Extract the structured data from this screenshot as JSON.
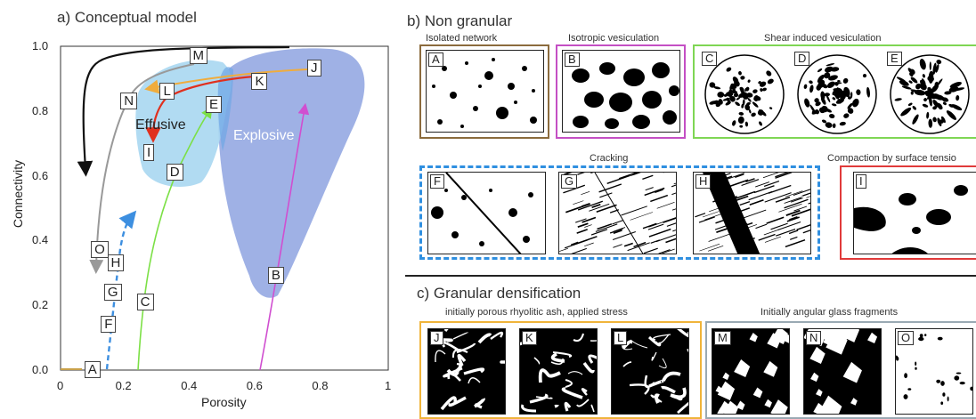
{
  "panel_a": {
    "title": "a) Conceptual model",
    "xlabel": "Porosity",
    "ylabel": "Connectivity",
    "xticks": [
      "0",
      "0.2",
      "0.4",
      "0.6",
      "0.8",
      "1"
    ],
    "yticks": [
      "0.0",
      "0.2",
      "0.4",
      "0.6",
      "0.8",
      "1.0"
    ],
    "region_labels": {
      "effusive": "Effusive",
      "explosive": "Explosive"
    },
    "markers": [
      "A",
      "B",
      "C",
      "D",
      "E",
      "F",
      "G",
      "H",
      "I",
      "J",
      "K",
      "L",
      "M",
      "N",
      "O"
    ]
  },
  "panel_b": {
    "title": "b)  Non granular",
    "groups": {
      "isolated": "Isolated network",
      "isotropic": "Isotropic vesiculation",
      "shear": "Shear induced vesiculation",
      "cracking": "Cracking",
      "compaction": "Compaction by surface tensio"
    },
    "colors": {
      "isolated": "#8b6b3d",
      "isotropic": "#c44fc4",
      "shear": "#7fd654",
      "cracking": "#2f8fe0",
      "compaction": "#e03a3a"
    }
  },
  "panel_c": {
    "title": "c)  Granular densification",
    "groups": {
      "rhyolitic": "initially  porous rhyolitic ash, applied stress",
      "angular": "Initially angular glass fragments"
    },
    "colors": {
      "rhyolitic": "#f0b43a",
      "angular": "#9aa9b3"
    }
  },
  "chart_data": {
    "type": "scatter",
    "title": "a) Conceptual model",
    "xlabel": "Porosity",
    "ylabel": "Connectivity",
    "xlim": [
      0,
      1
    ],
    "ylim": [
      0,
      1
    ],
    "points": [
      {
        "label": "A",
        "x": 0.1,
        "y": 0.0
      },
      {
        "label": "F",
        "x": 0.15,
        "y": 0.14
      },
      {
        "label": "G",
        "x": 0.16,
        "y": 0.24
      },
      {
        "label": "H",
        "x": 0.17,
        "y": 0.33
      },
      {
        "label": "O",
        "x": 0.12,
        "y": 0.37
      },
      {
        "label": "C",
        "x": 0.26,
        "y": 0.21
      },
      {
        "label": "B",
        "x": 0.66,
        "y": 0.29
      },
      {
        "label": "D",
        "x": 0.35,
        "y": 0.61
      },
      {
        "label": "I",
        "x": 0.28,
        "y": 0.67
      },
      {
        "label": "E",
        "x": 0.47,
        "y": 0.82
      },
      {
        "label": "N",
        "x": 0.21,
        "y": 0.83
      },
      {
        "label": "L",
        "x": 0.33,
        "y": 0.86
      },
      {
        "label": "K",
        "x": 0.61,
        "y": 0.89
      },
      {
        "label": "J",
        "x": 0.78,
        "y": 0.93
      },
      {
        "label": "M",
        "x": 0.42,
        "y": 0.97
      }
    ]
  }
}
